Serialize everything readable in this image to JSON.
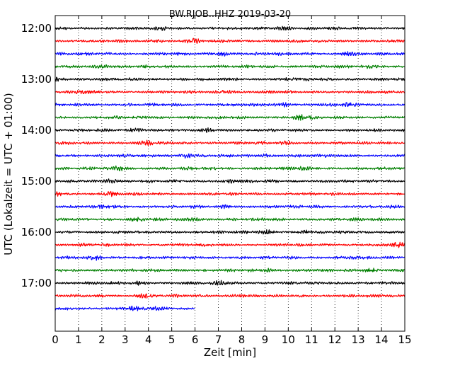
{
  "chart_data": {
    "type": "line",
    "title": "BW.RJOB..HHZ 2019-03-20",
    "xlabel": "Zeit  [min]",
    "ylabel": "UTC (Lokalzeit = UTC + 01:00)",
    "xlim": [
      0,
      15
    ],
    "x_ticks": [
      "0",
      "1",
      "2",
      "3",
      "4",
      "5",
      "6",
      "7",
      "8",
      "9",
      "10",
      "11",
      "12",
      "13",
      "14",
      "15"
    ],
    "y_ticks": [
      "12:00",
      "13:00",
      "14:00",
      "15:00",
      "16:00",
      "17:00"
    ],
    "grid": "vertical dotted",
    "trace_interval_min": 15,
    "start_time": "12:00",
    "trace_colors": [
      "#000000",
      "#ff0000",
      "#0000ff",
      "#007f00"
    ],
    "traces": [
      {
        "start": "12:00",
        "end_min": 15
      },
      {
        "start": "12:15",
        "end_min": 15
      },
      {
        "start": "12:30",
        "end_min": 15
      },
      {
        "start": "12:45",
        "end_min": 15
      },
      {
        "start": "13:00",
        "end_min": 15
      },
      {
        "start": "13:15",
        "end_min": 15
      },
      {
        "start": "13:30",
        "end_min": 15
      },
      {
        "start": "13:45",
        "end_min": 15
      },
      {
        "start": "14:00",
        "end_min": 15
      },
      {
        "start": "14:15",
        "end_min": 15
      },
      {
        "start": "14:30",
        "end_min": 15
      },
      {
        "start": "14:45",
        "end_min": 15
      },
      {
        "start": "15:00",
        "end_min": 15
      },
      {
        "start": "15:15",
        "end_min": 15
      },
      {
        "start": "15:30",
        "end_min": 15
      },
      {
        "start": "15:45",
        "end_min": 15
      },
      {
        "start": "16:00",
        "end_min": 15
      },
      {
        "start": "16:15",
        "end_min": 15
      },
      {
        "start": "16:30",
        "end_min": 15
      },
      {
        "start": "16:45",
        "end_min": 15
      },
      {
        "start": "17:00",
        "end_min": 15
      },
      {
        "start": "17:15",
        "end_min": 15
      },
      {
        "start": "17:30",
        "end_min": 6
      }
    ]
  }
}
